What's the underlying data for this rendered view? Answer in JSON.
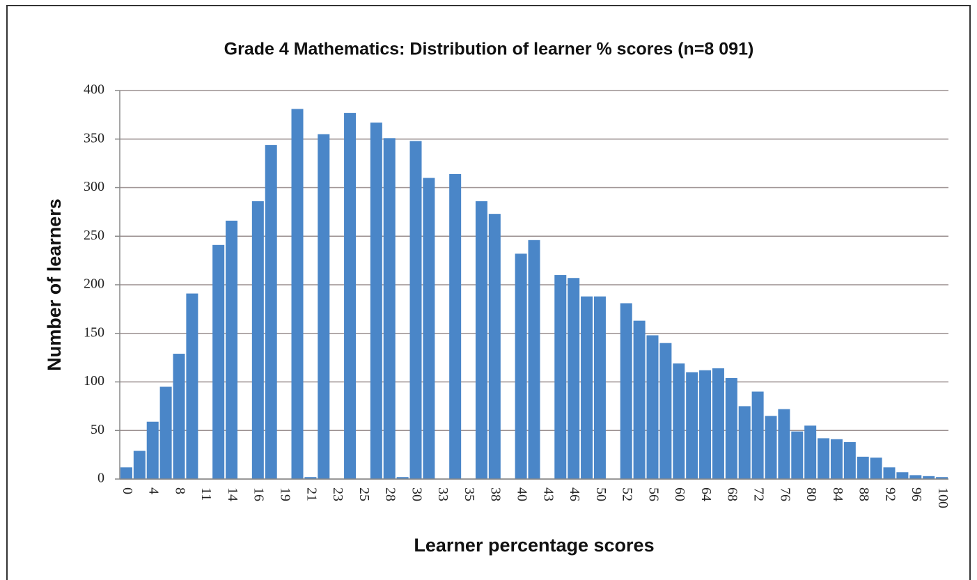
{
  "chart_data": {
    "type": "bar",
    "title": "Grade 4 Mathematics: Distribution of learner % scores (n=8 091)",
    "x_label": "Learner percentage scores",
    "y_label": "Number of learners",
    "categories": [
      "0",
      null,
      "4",
      null,
      "8",
      null,
      "11",
      null,
      "14",
      null,
      "16",
      null,
      "19",
      null,
      "21",
      null,
      "23",
      null,
      "25",
      null,
      "28",
      null,
      "30",
      null,
      "33",
      null,
      "35",
      null,
      "38",
      null,
      "40",
      null,
      "43",
      null,
      "46",
      null,
      "50",
      null,
      "52",
      null,
      "56",
      null,
      "60",
      null,
      "64",
      null,
      "68",
      null,
      "72",
      null,
      "76",
      null,
      "80",
      null,
      "84",
      null,
      "88",
      null,
      "92",
      null,
      "96",
      null,
      "100"
    ],
    "values": [
      12,
      29,
      59,
      95,
      129,
      191,
      0,
      241,
      266,
      0,
      286,
      344,
      0,
      381,
      2,
      355,
      0,
      377,
      0,
      367,
      351,
      2,
      348,
      310,
      0,
      314,
      0,
      286,
      273,
      0,
      232,
      246,
      0,
      210,
      207,
      188,
      188,
      0,
      181,
      163,
      148,
      140,
      119,
      110,
      112,
      114,
      104,
      75,
      90,
      65,
      72,
      49,
      55,
      42,
      41,
      38,
      23,
      22,
      12,
      7,
      4,
      3,
      2
    ],
    "color": "#4a86c8",
    "ylim": [
      0,
      400
    ],
    "yticks": [
      0,
      50,
      100,
      150,
      200,
      250,
      300,
      350,
      400
    ],
    "grid": true
  }
}
